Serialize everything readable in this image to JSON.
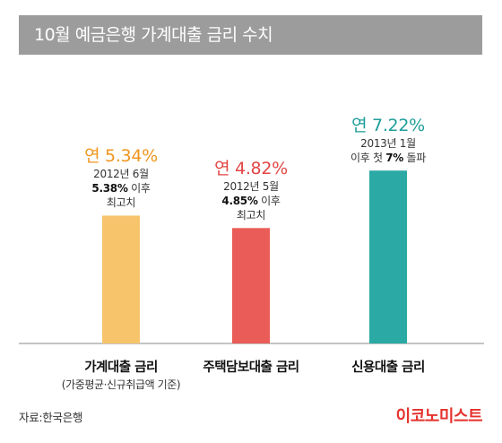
{
  "title": "10월 예금은행 가계대출 금리 수치",
  "source": "자료:한국은행",
  "brand": "이코노미스트",
  "colors": {
    "title_bg": "#9c9c9c",
    "bar_household": "#f7c46c",
    "bar_housing": "#e95c57",
    "bar_credit": "#2aa9a5",
    "rate_household": "#f0961e",
    "rate_housing": "#e24545",
    "rate_credit": "#1e9e9a",
    "brand": "#e5322d"
  },
  "chart_data": {
    "type": "bar",
    "categories": [
      "가계대출 금리",
      "주택담보대출 금리",
      "신용대출 금리"
    ],
    "category_sub": [
      "(가중평균·신규취급액 기준)",
      "",
      ""
    ],
    "values": [
      5.34,
      4.82,
      7.22
    ],
    "value_labels": [
      "연 5.34%",
      "연 4.82%",
      "연 7.22%"
    ],
    "unit": "%",
    "ylim": [
      0,
      8.5
    ],
    "grid": false,
    "annotations": [
      [
        {
          "pre": "",
          "bold": "",
          "post": "2012년 6월"
        },
        {
          "pre": "",
          "bold": "5.38%",
          "post": " 이후"
        },
        {
          "pre": "",
          "bold": "",
          "post": "최고치"
        }
      ],
      [
        {
          "pre": "",
          "bold": "",
          "post": "2012년 5월"
        },
        {
          "pre": "",
          "bold": "4.85%",
          "post": " 이후"
        },
        {
          "pre": "",
          "bold": "",
          "post": "최고치"
        }
      ],
      [
        {
          "pre": "",
          "bold": "",
          "post": "2013년 1월"
        },
        {
          "pre": "이후 첫 ",
          "bold": "7%",
          "post": " 돌파"
        }
      ]
    ]
  }
}
